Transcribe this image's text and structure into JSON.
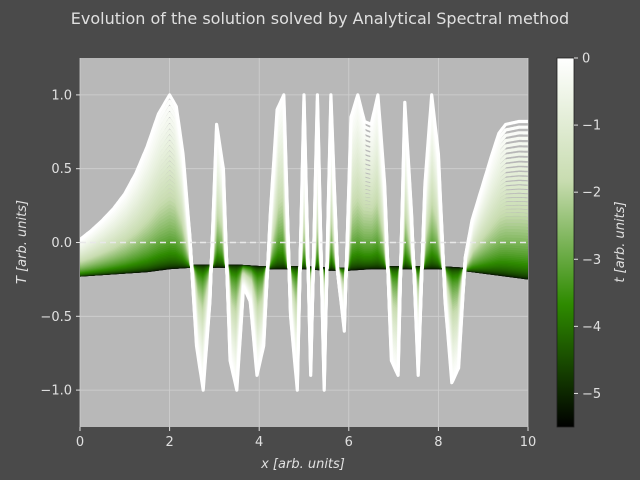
{
  "chart_data": {
    "type": "line",
    "title": "Evolution of the solution solved by Analytical Spectral method",
    "xlabel": "x [arb. units]",
    "ylabel": "T [arb. units]",
    "colorbar_label": "t [arb. units]",
    "xlim": [
      0,
      10
    ],
    "ylim": [
      -1.25,
      1.25
    ],
    "x_ticks": [
      0,
      2,
      4,
      6,
      8,
      10
    ],
    "x_tick_labels": [
      "0",
      "2",
      "4",
      "6",
      "8",
      "10"
    ],
    "y_ticks": [
      -1.0,
      -0.5,
      0.0,
      0.5,
      1.0
    ],
    "y_tick_labels": [
      "−1.0",
      "−0.5",
      "0.0",
      "0.5",
      "1.0"
    ],
    "colorbar_ticks": [
      0,
      -1,
      -2,
      -3,
      -4,
      -5
    ],
    "colorbar_tick_labels": [
      "0",
      "−1",
      "−2",
      "−3",
      "−4",
      "−5"
    ],
    "colorbar_range": [
      -5.5,
      0
    ],
    "grid": true,
    "reference_line": {
      "y": 0,
      "style": "dashed",
      "color": "#e8e8e8"
    },
    "colormap": [
      "#000000",
      "#2e8b00",
      "#c8dcb0",
      "#ffffff"
    ],
    "colors": {
      "figure_bg": "#4a4a4a",
      "axes_bg": "#b8b8b8",
      "text": "#e0e0e0"
    },
    "initial_profile": {
      "x": [
        0,
        0.5,
        1.0,
        1.5,
        2.0,
        2.5,
        3.0,
        3.5,
        4.0,
        4.5,
        5.0,
        5.5,
        6.0,
        6.5,
        7.0,
        7.5,
        8.0,
        8.5,
        9.0,
        9.5,
        10.0
      ],
      "T": [
        -0.22,
        -0.21,
        -0.2,
        -0.19,
        -0.17,
        -0.16,
        -0.16,
        -0.16,
        -0.17,
        -0.17,
        -0.17,
        -0.18,
        -0.18,
        -0.17,
        -0.17,
        -0.17,
        -0.17,
        -0.18,
        -0.2,
        -0.22,
        -0.24
      ]
    },
    "final_profile": {
      "x": [
        0,
        0.25,
        0.5,
        0.75,
        1.0,
        1.25,
        1.5,
        1.75,
        2.0,
        2.15,
        2.3,
        2.45,
        2.6,
        2.75,
        2.9,
        3.05,
        3.2,
        3.35,
        3.5,
        3.65,
        3.8,
        3.95,
        4.1,
        4.25,
        4.4,
        4.55,
        4.7,
        4.85,
        5.0,
        5.15,
        5.3,
        5.45,
        5.6,
        5.75,
        5.9,
        6.05,
        6.2,
        6.35,
        6.5,
        6.65,
        6.8,
        6.95,
        7.1,
        7.25,
        7.4,
        7.55,
        7.7,
        7.85,
        8.0,
        8.15,
        8.3,
        8.45,
        8.6,
        8.75,
        8.9,
        9.05,
        9.2,
        9.35,
        9.5,
        9.65,
        9.8,
        10.0
      ],
      "T": [
        0.02,
        0.08,
        0.15,
        0.23,
        0.33,
        0.47,
        0.65,
        0.87,
        1.0,
        0.92,
        0.6,
        0.05,
        -0.7,
        -1.0,
        -0.4,
        0.8,
        0.5,
        -0.8,
        -1.0,
        -0.3,
        -0.4,
        -0.9,
        -0.7,
        0.2,
        0.9,
        1.0,
        -0.5,
        -1.0,
        1.0,
        -0.9,
        1.0,
        -1.0,
        1.0,
        -0.2,
        -0.6,
        0.85,
        1.0,
        0.82,
        0.8,
        1.0,
        0.4,
        -0.8,
        -0.9,
        0.95,
        0.2,
        -0.9,
        0.4,
        1.0,
        0.6,
        -0.4,
        -0.95,
        -0.85,
        -0.1,
        0.15,
        0.3,
        0.45,
        0.6,
        0.74,
        0.8,
        0.81,
        0.82,
        0.82
      ]
    }
  }
}
